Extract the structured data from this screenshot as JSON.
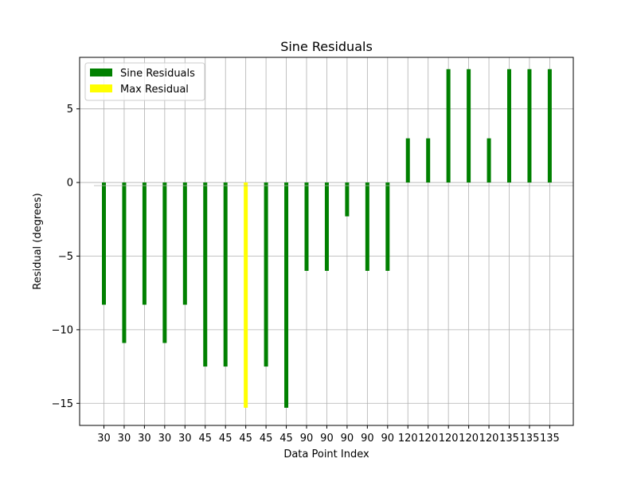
{
  "chart_data": {
    "type": "bar",
    "title": "Sine Residuals",
    "xlabel": "Data Point Index",
    "ylabel": "Residual (degrees)",
    "categories": [
      "30",
      "30",
      "30",
      "30",
      "30",
      "45",
      "45",
      "45",
      "45",
      "45",
      "90",
      "90",
      "90",
      "90",
      "90",
      "120",
      "120",
      "120",
      "120",
      "120",
      "135",
      "135",
      "135"
    ],
    "series": [
      {
        "name": "Sine Residuals",
        "color": "#008000",
        "values": [
          -8.3,
          -10.9,
          -8.3,
          -10.9,
          -8.3,
          -12.5,
          -12.5,
          -15.3,
          -12.5,
          -15.3,
          -6.0,
          -6.0,
          -2.3,
          -6.0,
          -6.0,
          3.0,
          3.0,
          7.7,
          7.7,
          3.0,
          7.7,
          7.7,
          7.7
        ]
      }
    ],
    "highlight": {
      "name": "Max Residual",
      "index": 7,
      "color": "#ffff00"
    },
    "ylim": [
      -16.5,
      8.5
    ],
    "yticks": [
      5,
      0,
      -5,
      -10,
      -15
    ],
    "ytick_labels": [
      "5",
      "0",
      "−5",
      "−10",
      "−15"
    ],
    "grid": true,
    "legend": {
      "placement": "top-left",
      "entries": [
        "Sine Residuals",
        "Max Residual"
      ]
    }
  }
}
